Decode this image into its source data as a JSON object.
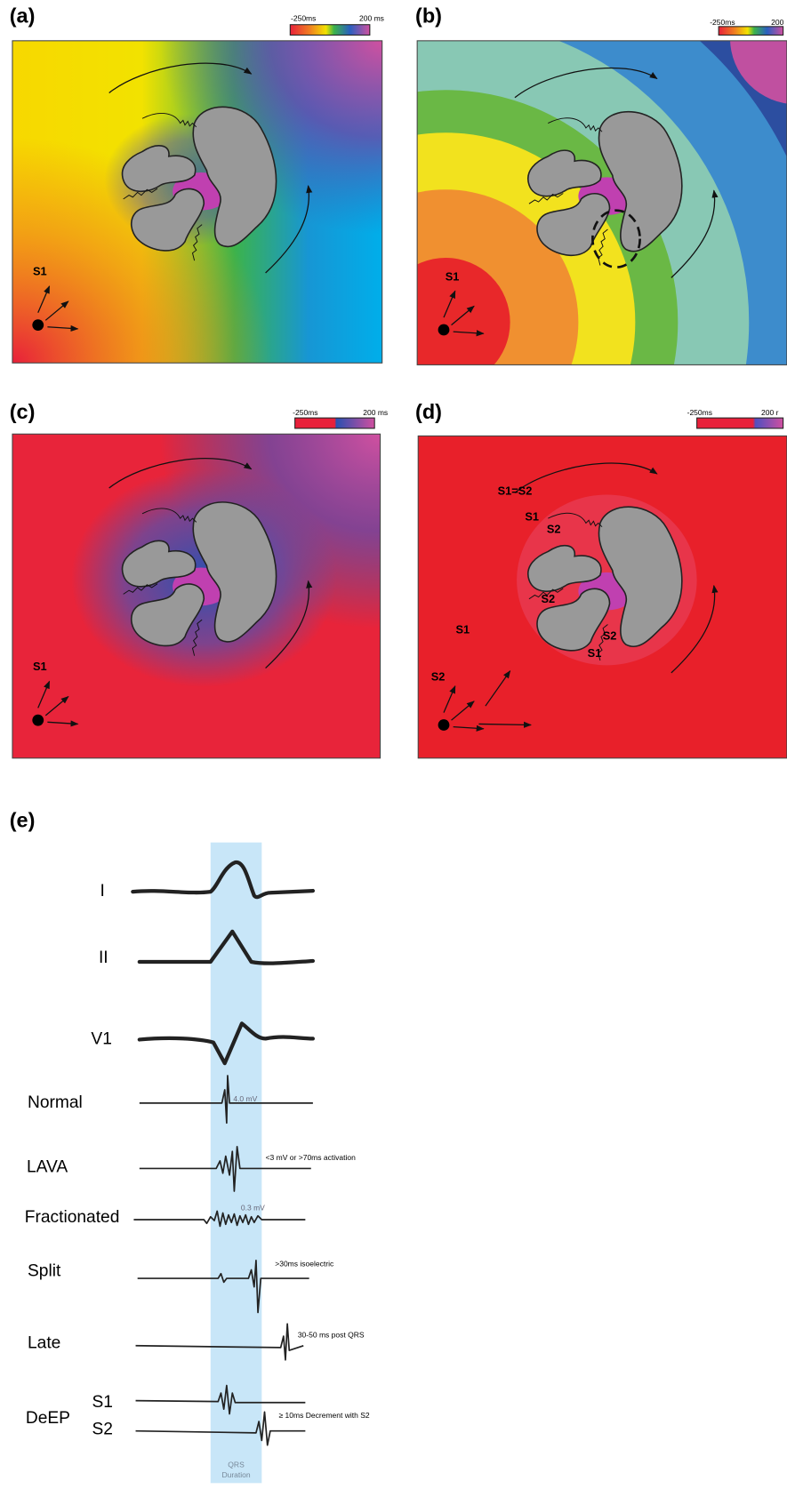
{
  "panels": [
    {
      "label": "(a)",
      "scale_min": "-250ms",
      "scale_max": "200 ms",
      "annotations": [
        "S1"
      ]
    },
    {
      "label": "(b)",
      "scale_min": "-250ms",
      "scale_max": "200",
      "annotations": [
        "S1"
      ]
    },
    {
      "label": "(c)",
      "scale_min": "-250ms",
      "scale_max": "200 ms",
      "annotations": [
        "S1"
      ]
    },
    {
      "label": "(d)",
      "scale_min": "-250ms",
      "scale_max": "200 r",
      "annotations": [
        "S1=S2",
        "S1",
        "S2",
        "S2",
        "S1",
        "S2",
        "S2",
        "S1"
      ]
    }
  ],
  "panel_e": {
    "label": "(e)",
    "leads": [
      "I",
      "II",
      "V1"
    ],
    "electrograms": [
      {
        "label": "Normal",
        "note": "4.0 mV"
      },
      {
        "label": "LAVA",
        "note": "<3 mV or >70ms activation"
      },
      {
        "label": "Fractionated",
        "note": "0.3 mV"
      },
      {
        "label": "Split",
        "note": ">30ms isoelectric"
      },
      {
        "label": "Late",
        "note": "30-50 ms post QRS"
      }
    ],
    "deep": {
      "label": "DeEP",
      "s1": "S1",
      "s2": "S2",
      "note": "≥ 10ms Decrement with S2"
    },
    "band_label": [
      "QRS",
      "Duration"
    ]
  }
}
